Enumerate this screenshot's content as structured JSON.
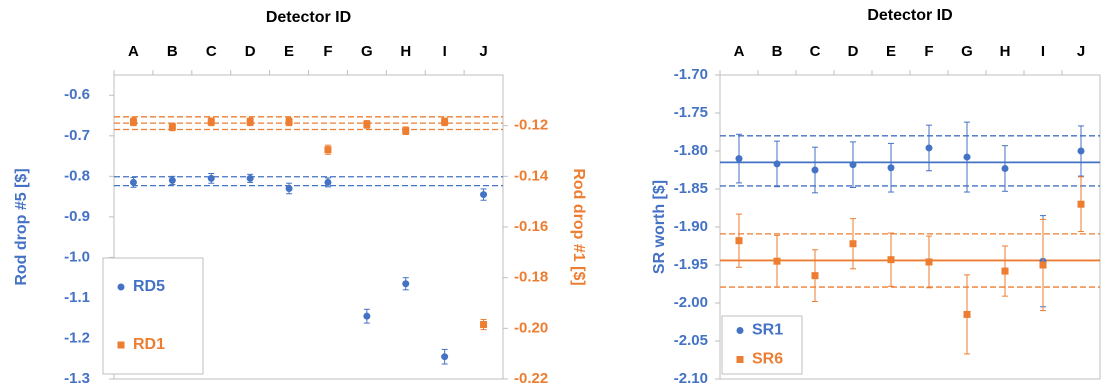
{
  "chart_data": [
    {
      "type": "scatter",
      "x_label": "Detector ID",
      "y_label": "Rod drop #5 [$]",
      "y2_label": "Rod drop #1 [$]",
      "categories": [
        "A",
        "B",
        "C",
        "D",
        "E",
        "F",
        "G",
        "H",
        "I",
        "J"
      ],
      "ylim": [
        -1.3,
        -0.55
      ],
      "yticks": [
        -1.3,
        -1.2,
        -1.1,
        {
          "value": -1,
          "label": "-1.0"
        },
        -0.9,
        -0.8,
        -0.7,
        -0.6
      ],
      "y2lim": [
        -0.22,
        -0.1
      ],
      "y2ticks": [
        -0.22,
        {
          "value": -0.2,
          "label": "-0.20"
        },
        -0.18,
        -0.16,
        -0.14,
        -0.12
      ],
      "legend": "bottom-left",
      "series": [
        {
          "name": "RD5",
          "color": "#4472c4",
          "marker": "circle",
          "axis": "y",
          "values": [
            -0.815,
            -0.81,
            -0.805,
            -0.805,
            -0.83,
            -0.815,
            -1.145,
            -1.065,
            -1.245,
            -0.845
          ],
          "errors": [
            0.012,
            0.01,
            0.012,
            0.01,
            0.013,
            0.011,
            0.017,
            0.015,
            0.018,
            0.014
          ]
        },
        {
          "name": "RD1",
          "color": "#ed7d31",
          "marker": "square",
          "axis": "y2",
          "values": [
            -0.1185,
            -0.1205,
            -0.1185,
            -0.1185,
            -0.1185,
            -0.1295,
            -0.1195,
            -0.122,
            -0.1185,
            -0.1985
          ],
          "errors": [
            0.0015,
            0.0015,
            0.0015,
            0.0015,
            0.0015,
            0.0018,
            0.0015,
            0.0015,
            0.0015,
            0.002
          ]
        }
      ],
      "ref_lines": [
        {
          "axis": "y",
          "color": "#4472c4",
          "style": "dashed",
          "value": -0.801
        },
        {
          "axis": "y",
          "color": "#4472c4",
          "style": "dashed",
          "value": -0.823
        },
        {
          "axis": "y2",
          "color": "#ed7d31",
          "style": "dashed",
          "value": -0.1165
        },
        {
          "axis": "y2",
          "color": "#ed7d31",
          "style": "dashed",
          "value": -0.119
        },
        {
          "axis": "y2",
          "color": "#ed7d31",
          "style": "dashed",
          "value": -0.1215
        }
      ]
    },
    {
      "type": "scatter",
      "x_label": "Detector ID",
      "y_label": "SR worth [$]",
      "categories": [
        "A",
        "B",
        "C",
        "D",
        "E",
        "F",
        "G",
        "H",
        "I",
        "J"
      ],
      "ylim": [
        -2.1,
        -1.7
      ],
      "yticks": [
        {
          "value": -2.1,
          "label": "-2.10"
        },
        -2.05,
        {
          "value": -2,
          "label": "-2.00"
        },
        -1.95,
        {
          "value": -1.9,
          "label": "-1.90"
        },
        -1.85,
        {
          "value": -1.8,
          "label": "-1.80"
        },
        -1.75,
        {
          "value": -1.7,
          "label": "-1.70"
        }
      ],
      "legend": "bottom-left",
      "series": [
        {
          "name": "SR1",
          "color": "#4472c4",
          "marker": "circle",
          "axis": "y",
          "values": [
            -1.81,
            -1.817,
            -1.825,
            -1.818,
            -1.822,
            -1.796,
            -1.808,
            -1.823,
            -1.945,
            -1.8
          ],
          "errors": [
            0.032,
            0.03,
            0.03,
            0.03,
            0.032,
            0.03,
            0.046,
            0.03,
            0.06,
            0.033
          ]
        },
        {
          "name": "SR6",
          "color": "#ed7d31",
          "marker": "square",
          "axis": "y",
          "values": [
            -1.918,
            -1.945,
            -1.964,
            -1.922,
            -1.943,
            -1.946,
            -2.015,
            -1.958,
            -1.95,
            -1.87
          ],
          "errors": [
            0.035,
            0.034,
            0.034,
            0.033,
            0.035,
            0.034,
            0.052,
            0.033,
            0.06,
            0.036
          ]
        }
      ],
      "ref_lines": [
        {
          "axis": "y",
          "color": "#4472c4",
          "style": "solid",
          "value": -1.815
        },
        {
          "axis": "y",
          "color": "#4472c4",
          "style": "dashed",
          "value": -1.78
        },
        {
          "axis": "y",
          "color": "#4472c4",
          "style": "dashed",
          "value": -1.846
        },
        {
          "axis": "y",
          "color": "#ed7d31",
          "style": "solid",
          "value": -1.944
        },
        {
          "axis": "y",
          "color": "#ed7d31",
          "style": "dashed",
          "value": -1.909
        },
        {
          "axis": "y",
          "color": "#ed7d31",
          "style": "dashed",
          "value": -1.979
        }
      ]
    }
  ]
}
